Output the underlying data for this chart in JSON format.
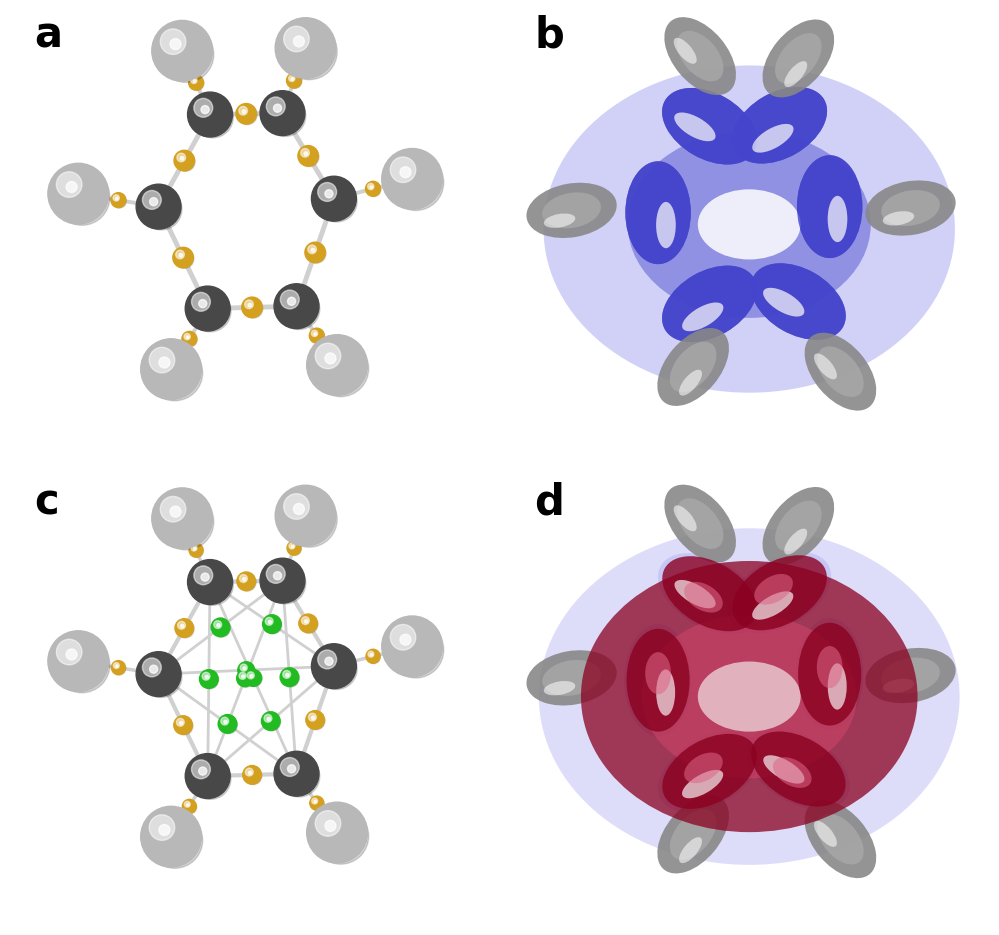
{
  "labels": [
    "a",
    "b",
    "c",
    "d"
  ],
  "label_fontsize": 30,
  "background_color": "#ffffff",
  "dark_atom_color": "#484848",
  "light_atom_color": "#b8b8b8",
  "gold_atom_color": "#d4a020",
  "green_atom_color": "#22bb22",
  "orbital_blue": "#4444cc",
  "orbital_blue_light": "#8888ee",
  "orbital_blue_alpha": 0.7,
  "orbital_dark_red": "#8b0020",
  "orbital_pink": "#cc4466",
  "orbital_dark_red_alpha": 0.8
}
